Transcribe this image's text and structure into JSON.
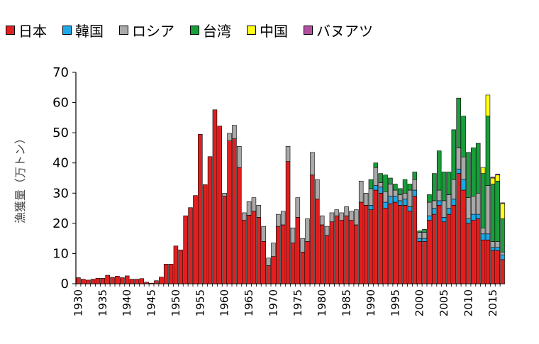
{
  "chart_data": {
    "type": "bar",
    "stacked": true,
    "title": "",
    "xlabel": "",
    "ylabel": "漁獲量（万トン）",
    "ylim": [
      0,
      70
    ],
    "yticks": [
      0,
      10,
      20,
      30,
      40,
      50,
      60,
      70
    ],
    "xticks": [
      "1930",
      "1935",
      "1940",
      "1945",
      "1950",
      "1955",
      "1960",
      "1965",
      "1970",
      "1975",
      "1980",
      "1985",
      "1990",
      "1995",
      "2000",
      "2005",
      "2010",
      "2015"
    ],
    "legend_position": "top",
    "categories": [
      1930,
      1931,
      1932,
      1933,
      1934,
      1935,
      1936,
      1937,
      1938,
      1939,
      1940,
      1941,
      1942,
      1943,
      1944,
      1945,
      1946,
      1947,
      1948,
      1949,
      1950,
      1951,
      1952,
      1953,
      1954,
      1955,
      1956,
      1957,
      1958,
      1959,
      1960,
      1961,
      1962,
      1963,
      1964,
      1965,
      1966,
      1967,
      1968,
      1969,
      1970,
      1971,
      1972,
      1973,
      1974,
      1975,
      1976,
      1977,
      1978,
      1979,
      1980,
      1981,
      1982,
      1983,
      1984,
      1985,
      1986,
      1987,
      1988,
      1989,
      1990,
      1991,
      1992,
      1993,
      1994,
      1995,
      1996,
      1997,
      1998,
      1999,
      2000,
      2001,
      2002,
      2003,
      2004,
      2005,
      2006,
      2007,
      2008,
      2009,
      2010,
      2011,
      2012,
      2013,
      2014,
      2015,
      2016,
      2017
    ],
    "series": [
      {
        "name": "日本",
        "color": "#e02020",
        "values": [
          2.0,
          1.5,
          1.2,
          1.5,
          1.8,
          1.8,
          2.8,
          2.1,
          2.5,
          2.0,
          2.6,
          1.5,
          1.5,
          1.7,
          0.5,
          0.2,
          1.0,
          2.2,
          6.5,
          6.5,
          12.5,
          11.2,
          22.5,
          25.2,
          29.2,
          49.5,
          32.8,
          42.1,
          57.6,
          52.2,
          29.0,
          47.3,
          48.0,
          38.5,
          21.0,
          22.7,
          24.0,
          22.0,
          14.0,
          6.0,
          9.0,
          19.0,
          19.5,
          40.5,
          13.5,
          22.0,
          10.5,
          14.0,
          36.0,
          28.0,
          19.5,
          16.0,
          20.5,
          22.5,
          21.0,
          22.5,
          21.0,
          19.5,
          27.0,
          26.0,
          24.5,
          31.0,
          30.0,
          25.0,
          26.5,
          27.0,
          26.0,
          26.0,
          24.0,
          29.0,
          14.0,
          14.0,
          21.0,
          23.0,
          26.0,
          20.5,
          23.0,
          26.0,
          36.5,
          31.0,
          20.0,
          21.0,
          21.5,
          14.5,
          14.5,
          11.0,
          11.0,
          8.0
        ]
      },
      {
        "name": "韓国",
        "color": "#1ea8e8",
        "values": [
          0,
          0,
          0,
          0,
          0,
          0,
          0,
          0,
          0,
          0,
          0,
          0,
          0,
          0,
          0,
          0,
          0,
          0,
          0,
          0,
          0,
          0,
          0,
          0,
          0,
          0,
          0,
          0,
          0,
          0,
          0,
          0,
          0,
          0,
          0,
          0,
          0,
          0,
          0,
          0,
          0,
          0,
          0,
          0,
          0,
          0,
          0,
          0,
          0,
          0,
          0,
          0,
          0,
          0,
          0,
          0,
          0,
          0,
          0,
          0,
          1.5,
          1.5,
          2.0,
          2.0,
          2.5,
          2.0,
          1.5,
          2.0,
          1.5,
          2.0,
          1.0,
          1.0,
          1.5,
          2.0,
          1.5,
          1.5,
          2.0,
          2.0,
          1.5,
          3.5,
          1.5,
          2.0,
          1.5,
          2.0,
          2.0,
          1.0,
          1.0,
          1.5
        ]
      },
      {
        "name": "ロシア",
        "color": "#a9a9a9",
        "values": [
          0,
          0,
          0,
          0,
          0,
          0,
          0,
          0,
          0,
          0,
          0,
          0,
          0,
          0,
          0,
          0,
          0,
          0,
          0,
          0,
          0,
          0,
          0,
          0,
          0,
          0,
          0,
          0,
          0,
          0,
          1.0,
          2.5,
          4.5,
          7.0,
          2.5,
          4.5,
          4.5,
          4.0,
          5.0,
          2.5,
          4.5,
          4.0,
          4.5,
          5.0,
          5.0,
          6.5,
          4.5,
          7.5,
          7.5,
          6.5,
          3.0,
          3.0,
          3.0,
          2.0,
          2.5,
          3.0,
          3.0,
          5.0,
          7.0,
          4.0,
          5.5,
          6.0,
          1.5,
          3.5,
          4.0,
          2.0,
          2.0,
          2.0,
          5.5,
          3.5,
          2.0,
          2.0,
          4.5,
          2.5,
          3.5,
          5.5,
          4.5,
          6.5,
          7.0,
          7.5,
          7.0,
          6.0,
          7.0,
          2.0,
          16.0,
          2.0,
          2.0,
          1.0
        ]
      },
      {
        "name": "台湾",
        "color": "#1a9e3c",
        "values": [
          0,
          0,
          0,
          0,
          0,
          0,
          0,
          0,
          0,
          0,
          0,
          0,
          0,
          0,
          0,
          0,
          0,
          0,
          0,
          0,
          0,
          0,
          0,
          0,
          0,
          0,
          0,
          0,
          0,
          0,
          0,
          0,
          0,
          0,
          0,
          0,
          0,
          0,
          0,
          0,
          0,
          0,
          0,
          0,
          0,
          0,
          0,
          0,
          0,
          0,
          0,
          0,
          0,
          0,
          0,
          0,
          0,
          0,
          0,
          0,
          3.0,
          1.5,
          3.0,
          5.5,
          2.0,
          2.0,
          2.0,
          4.5,
          2.0,
          2.5,
          0.5,
          1.0,
          2.5,
          9.0,
          13.0,
          9.5,
          7.5,
          16.5,
          16.5,
          13.5,
          15.0,
          16.0,
          16.5,
          18.0,
          23.0,
          19.0,
          20.0,
          11.0
        ]
      },
      {
        "name": "中国",
        "color": "#ffff1a",
        "values": [
          0,
          0,
          0,
          0,
          0,
          0,
          0,
          0,
          0,
          0,
          0,
          0,
          0,
          0,
          0,
          0,
          0,
          0,
          0,
          0,
          0,
          0,
          0,
          0,
          0,
          0,
          0,
          0,
          0,
          0,
          0,
          0,
          0,
          0,
          0,
          0,
          0,
          0,
          0,
          0,
          0,
          0,
          0,
          0,
          0,
          0,
          0,
          0,
          0,
          0,
          0,
          0,
          0,
          0,
          0,
          0,
          0,
          0,
          0,
          0,
          0,
          0,
          0,
          0,
          0,
          0,
          0,
          0,
          0,
          0,
          0,
          0,
          0,
          0,
          0,
          0,
          0,
          0,
          0,
          0,
          0,
          0,
          0,
          2.0,
          7.0,
          2.0,
          2.0,
          5.0
        ]
      },
      {
        "name": "バヌアツ",
        "color": "#b050a0",
        "values": [
          0,
          0,
          0,
          0,
          0,
          0,
          0,
          0,
          0,
          0,
          0,
          0,
          0,
          0,
          0,
          0,
          0,
          0,
          0,
          0,
          0,
          0,
          0,
          0,
          0,
          0,
          0,
          0,
          0,
          0,
          0,
          0,
          0,
          0,
          0,
          0,
          0,
          0,
          0,
          0,
          0,
          0,
          0,
          0,
          0,
          0,
          0,
          0,
          0,
          0,
          0,
          0,
          0,
          0,
          0,
          0,
          0,
          0,
          0,
          0,
          0,
          0,
          0,
          0,
          0,
          0,
          0,
          0,
          0,
          0,
          0,
          0,
          0,
          0,
          0,
          0,
          0,
          0,
          0,
          0,
          0,
          0,
          0,
          0,
          0,
          0.3,
          0.3,
          0.3
        ]
      }
    ]
  }
}
